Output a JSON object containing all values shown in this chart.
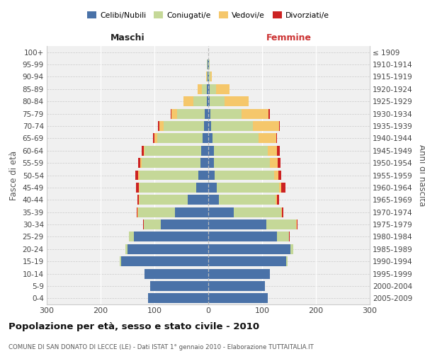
{
  "age_groups": [
    "0-4",
    "5-9",
    "10-14",
    "15-19",
    "20-24",
    "25-29",
    "30-34",
    "35-39",
    "40-44",
    "45-49",
    "50-54",
    "55-59",
    "60-64",
    "65-69",
    "70-74",
    "75-79",
    "80-84",
    "85-89",
    "90-94",
    "95-99",
    "100+"
  ],
  "birth_years": [
    "2005-2009",
    "2000-2004",
    "1995-1999",
    "1990-1994",
    "1985-1989",
    "1980-1984",
    "1975-1979",
    "1970-1974",
    "1965-1969",
    "1960-1964",
    "1955-1959",
    "1950-1954",
    "1945-1949",
    "1940-1944",
    "1935-1939",
    "1930-1934",
    "1925-1929",
    "1920-1924",
    "1915-1919",
    "1910-1914",
    "≤ 1909"
  ],
  "maschi": {
    "celibi": [
      112,
      108,
      118,
      162,
      150,
      138,
      88,
      62,
      38,
      22,
      18,
      14,
      13,
      10,
      8,
      6,
      3,
      2,
      1,
      1,
      0
    ],
    "coniugati": [
      0,
      0,
      0,
      2,
      4,
      10,
      32,
      68,
      90,
      105,
      110,
      110,
      105,
      85,
      75,
      52,
      25,
      10,
      2,
      1,
      0
    ],
    "vedovi": [
      0,
      0,
      0,
      0,
      0,
      0,
      0,
      1,
      1,
      2,
      2,
      2,
      2,
      5,
      8,
      10,
      18,
      8,
      1,
      0,
      0
    ],
    "divorziati": [
      0,
      0,
      0,
      0,
      0,
      0,
      1,
      2,
      2,
      5,
      5,
      4,
      4,
      2,
      2,
      2,
      0,
      0,
      0,
      0,
      0
    ]
  },
  "femmine": {
    "nubili": [
      110,
      105,
      115,
      145,
      152,
      128,
      108,
      48,
      20,
      16,
      12,
      10,
      10,
      8,
      5,
      4,
      2,
      3,
      1,
      1,
      0
    ],
    "coniugate": [
      0,
      0,
      0,
      2,
      6,
      22,
      55,
      88,
      105,
      115,
      110,
      105,
      100,
      85,
      78,
      58,
      28,
      12,
      3,
      1,
      0
    ],
    "vedove": [
      0,
      0,
      0,
      0,
      0,
      0,
      1,
      1,
      2,
      4,
      8,
      14,
      18,
      33,
      48,
      50,
      45,
      25,
      3,
      0,
      0
    ],
    "divorziate": [
      0,
      0,
      0,
      0,
      0,
      1,
      2,
      2,
      4,
      8,
      6,
      5,
      5,
      2,
      2,
      2,
      0,
      0,
      0,
      0,
      0
    ]
  },
  "colors": {
    "celibi": "#4a72a8",
    "coniugati": "#c5d898",
    "vedovi": "#f5c76b",
    "divorziati": "#cc2222"
  },
  "xlim": 300,
  "title": "Popolazione per età, sesso e stato civile - 2010",
  "subtitle": "COMUNE DI SAN DONATO DI LECCE (LE) - Dati ISTAT 1° gennaio 2010 - Elaborazione TUTTAITALIA.IT",
  "ylabel_left": "Fasce di età",
  "ylabel_right": "Anni di nascita",
  "maschi_label": "Maschi",
  "femmine_label": "Femmine",
  "legend_labels": [
    "Celibi/Nubili",
    "Coniugati/e",
    "Vedovi/e",
    "Divorziati/e"
  ]
}
